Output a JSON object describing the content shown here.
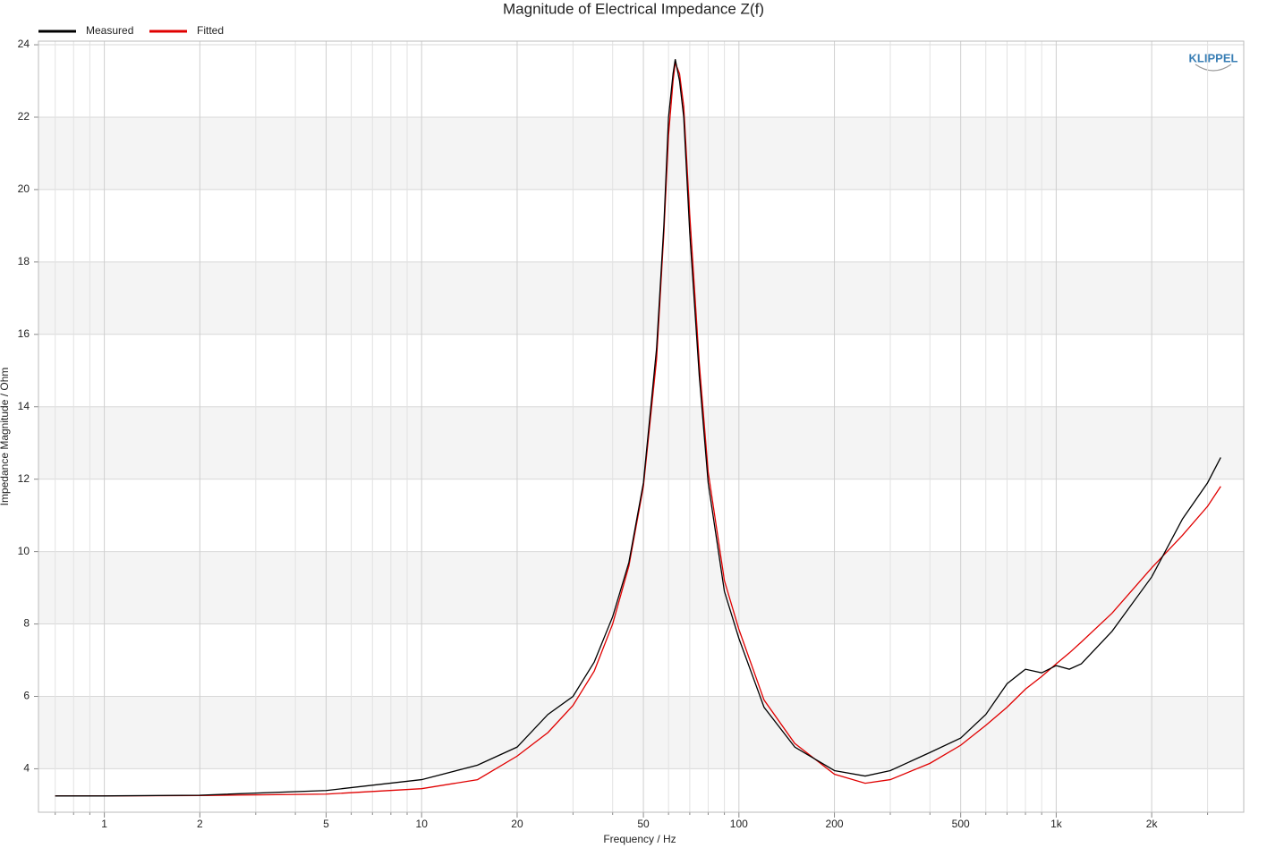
{
  "chart_data": {
    "type": "line",
    "title": "Magnitude of Electrical Impedance Z(f)",
    "x_label": "Frequency / Hz",
    "y_label": "Impedance Magnitude / Ohm",
    "logo": "KLIPPEL",
    "xscale": "log",
    "grid": true,
    "banded": true,
    "legend": "top-left",
    "xlim": [
      0.62,
      3900
    ],
    "ylim": [
      2.8,
      24.1
    ],
    "xticks": [
      1,
      2,
      5,
      10,
      20,
      50,
      100,
      200,
      500,
      {
        "value": 1000,
        "label": "1k"
      },
      {
        "value": 2000,
        "label": "2k"
      }
    ],
    "xminorticks": [
      0.7,
      0.8,
      0.9,
      3,
      4,
      6,
      7,
      8,
      9,
      30,
      40,
      60,
      70,
      80,
      90,
      300,
      400,
      600,
      700,
      800,
      900,
      3000
    ],
    "yticks": [
      4,
      6,
      8,
      10,
      12,
      14,
      16,
      18,
      20,
      22,
      24
    ],
    "x": [
      0.7,
      1,
      2,
      5,
      10,
      15,
      20,
      25,
      30,
      35,
      40,
      45,
      50,
      55,
      58,
      60,
      62,
      63,
      65,
      67,
      70,
      75,
      80,
      90,
      100,
      120,
      150,
      200,
      250,
      300,
      400,
      500,
      600,
      700,
      800,
      900,
      1000,
      1100,
      1200,
      1500,
      2000,
      2500,
      3000,
      3300
    ],
    "series": [
      {
        "name": "Measured",
        "color": "#000000",
        "values": [
          3.25,
          3.25,
          3.27,
          3.4,
          3.7,
          4.1,
          4.6,
          5.5,
          6.0,
          6.95,
          8.2,
          9.7,
          11.9,
          15.6,
          19.0,
          22.0,
          23.2,
          23.6,
          23.0,
          22.0,
          18.8,
          14.85,
          11.9,
          8.9,
          7.6,
          5.7,
          4.6,
          3.95,
          3.8,
          3.95,
          4.45,
          4.85,
          5.5,
          6.35,
          6.75,
          6.65,
          6.85,
          6.75,
          6.9,
          7.8,
          9.3,
          10.9,
          11.9,
          12.6
        ]
      },
      {
        "name": "Fitted",
        "color": "#e00000",
        "values": [
          3.25,
          3.25,
          3.26,
          3.3,
          3.45,
          3.7,
          4.35,
          5.0,
          5.75,
          6.7,
          8.0,
          9.6,
          11.8,
          15.3,
          18.8,
          21.5,
          23.0,
          23.5,
          23.2,
          22.3,
          19.3,
          15.2,
          12.2,
          9.2,
          7.85,
          5.9,
          4.7,
          3.85,
          3.6,
          3.7,
          4.15,
          4.65,
          5.2,
          5.7,
          6.2,
          6.55,
          6.9,
          7.2,
          7.5,
          8.3,
          9.55,
          10.45,
          11.25,
          11.8
        ]
      }
    ]
  }
}
